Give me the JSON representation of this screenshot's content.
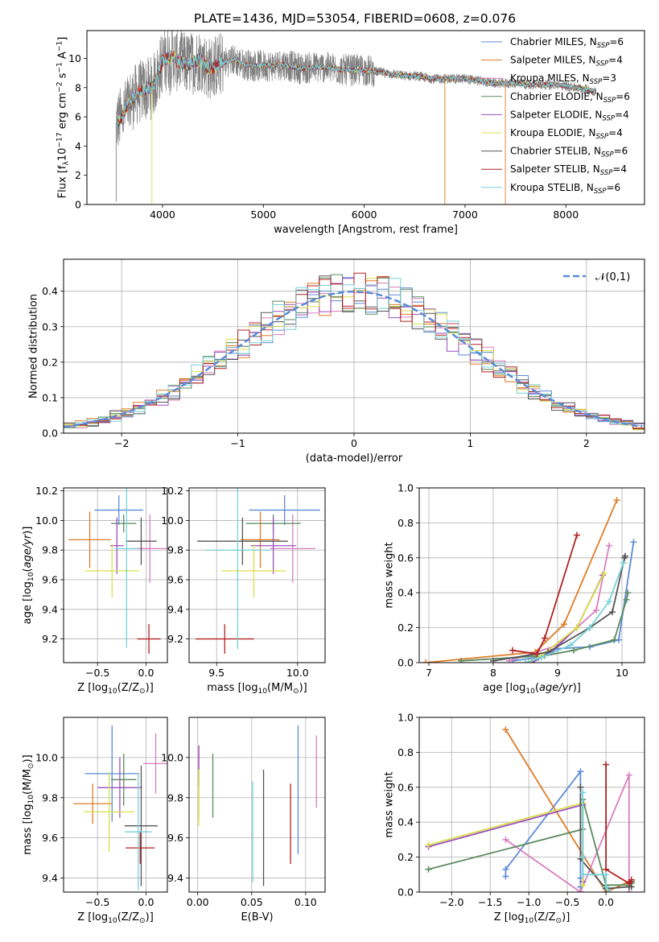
{
  "figure_title": "PLATE=1436, MJD=53054, FIBERID=0608, z=0.076",
  "model_colors": [
    "#5b8bd8",
    "#e07c27",
    "#d97fbf",
    "#5a8a5e",
    "#9b4fbd",
    "#d9e04a",
    "#555555",
    "#b22222",
    "#78d1d8"
  ],
  "chart_data": [
    {
      "id": "spectrum",
      "type": "line",
      "xlabel": "wavelength [Angstrom, rest frame]",
      "ylabel": "Flux [f$_\\lambda$10$^{-17}$ erg cm$^{-2}$ s$^{-1}$ A$^{-1}$]",
      "xlim": [
        3250,
        8780
      ],
      "ylim": [
        0,
        11.9
      ],
      "xticks": [
        4000,
        5000,
        6000,
        7000,
        8000
      ],
      "yticks": [
        0,
        2,
        4,
        6,
        8,
        10
      ],
      "grid": false,
      "legend_position": "top-right",
      "legend": [
        {
          "lead": "Chabrier MILES, N",
          "sub": "SSP",
          "tail": "=6"
        },
        {
          "lead": "Salpeter MILES, N",
          "sub": "SSP",
          "tail": "=4"
        },
        {
          "lead": "Kroupa MILES, N",
          "sub": "SSP",
          "tail": "=3"
        },
        {
          "lead": "Chabrier ELODIE, N",
          "sub": "SSP",
          "tail": "=6"
        },
        {
          "lead": "Salpeter ELODIE, N",
          "sub": "SSP",
          "tail": "=4"
        },
        {
          "lead": "Kroupa ELODIE, N",
          "sub": "SSP",
          "tail": "=4"
        },
        {
          "lead": "Chabrier STELIB, N",
          "sub": "SSP",
          "tail": "=6"
        },
        {
          "lead": "Salpeter STELIB, N",
          "sub": "SSP",
          "tail": "=4"
        },
        {
          "lead": "Kroupa STELIB, N",
          "sub": "SSP",
          "tail": "=6"
        }
      ],
      "data_color": "#808080",
      "x": [
        3540,
        3600,
        3650,
        3700,
        3750,
        3800,
        3850,
        3900,
        3950,
        4000,
        4050,
        4100,
        4150,
        4200,
        4250,
        4300,
        4350,
        4400,
        4450,
        4500,
        4600,
        4700,
        4800,
        4900,
        5000,
        5100,
        5200,
        5300,
        5400,
        5500,
        5600,
        5700,
        5800,
        5900,
        6000,
        6100,
        6200,
        6300,
        6400,
        6500,
        6600,
        6700,
        6800,
        6900,
        7000,
        7100,
        7200,
        7300,
        7400,
        7500,
        7600,
        7700,
        7800,
        7900,
        8000,
        8100,
        8200,
        8300
      ],
      "model_flux": [
        5.6,
        6.0,
        6.8,
        7.2,
        7.6,
        7.8,
        7.9,
        8.0,
        8.8,
        9.8,
        10.0,
        10.2,
        9.8,
        9.7,
        9.6,
        9.7,
        9.9,
        9.8,
        9.3,
        9.4,
        9.7,
        9.9,
        9.6,
        9.5,
        9.5,
        9.5,
        9.6,
        9.4,
        9.3,
        9.4,
        9.4,
        9.3,
        9.2,
        9.2,
        9.2,
        9.1,
        9.0,
        8.9,
        8.8,
        8.8,
        8.7,
        8.6,
        8.6,
        8.6,
        8.6,
        8.5,
        8.4,
        8.3,
        8.3,
        8.3,
        8.2,
        8.2,
        8.2,
        8.2,
        8.1,
        8.0,
        7.9,
        7.7
      ]
    },
    {
      "id": "residuals",
      "type": "step",
      "xlabel": "(data-model)/error",
      "ylabel": "Normed distribution",
      "xlim": [
        -2.5,
        2.5
      ],
      "ylim": [
        0,
        0.49
      ],
      "xticks": [
        -2,
        -1,
        0,
        1,
        2
      ],
      "yticks": [
        0.0,
        0.1,
        0.2,
        0.3,
        0.4
      ],
      "grid": true,
      "legend_position": "top-right",
      "gauss_label": "$\\mathcal{N}(0,1)$",
      "bin_width": 0.1
    },
    {
      "id": "age_vs_Z",
      "type": "errorbar",
      "xlabel": "Z [log$_{10}$($Z/Z_\\odot$)]",
      "ylabel": "age  [log$_{10}$($age/yr$)]",
      "xlim": [
        -0.85,
        0.22
      ],
      "ylim": [
        9.04,
        10.22
      ],
      "xticks": [
        -0.5,
        0.0
      ],
      "yticks": [
        9.2,
        9.4,
        9.6,
        9.8,
        10.0,
        10.2
      ],
      "points": [
        {
          "x": -0.28,
          "y": 10.07,
          "xerr": 0.25,
          "yerr": 0.1
        },
        {
          "x": -0.58,
          "y": 9.87,
          "xerr": 0.22,
          "yerr": 0.19
        },
        {
          "x": 0.04,
          "y": 9.81,
          "xerr": 0.18,
          "yerr": 0.23
        },
        {
          "x": -0.23,
          "y": 9.98,
          "xerr": 0.13,
          "yerr": 0.06
        },
        {
          "x": -0.3,
          "y": 9.83,
          "xerr": 0.07,
          "yerr": 0.19
        },
        {
          "x": -0.35,
          "y": 9.66,
          "xerr": 0.28,
          "yerr": 0.18
        },
        {
          "x": -0.05,
          "y": 9.86,
          "xerr": 0.16,
          "yerr": 0.16
        },
        {
          "x": 0.03,
          "y": 9.2,
          "xerr": 0.12,
          "yerr": 0.1
        },
        {
          "x": -0.2,
          "y": 9.81,
          "xerr": 0.12,
          "yerr": 0.67
        }
      ]
    },
    {
      "id": "age_vs_mass",
      "type": "errorbar",
      "xlabel": "mass [log$_{10}$($M/M_\\odot$)]",
      "ylabel": "",
      "xlim": [
        9.33,
        10.17
      ],
      "ylim": [
        9.04,
        10.22
      ],
      "xticks": [
        9.5,
        10.0
      ],
      "yticks": [
        9.2,
        9.4,
        9.6,
        9.8,
        10.0,
        10.2
      ],
      "points": [
        {
          "x": 9.92,
          "y": 10.07,
          "xerr": 0.22,
          "yerr": 0.1
        },
        {
          "x": 9.77,
          "y": 9.87,
          "xerr": 0.12,
          "yerr": 0.19
        },
        {
          "x": 9.97,
          "y": 9.81,
          "xerr": 0.14,
          "yerr": 0.23
        },
        {
          "x": 9.85,
          "y": 9.98,
          "xerr": 0.17,
          "yerr": 0.06
        },
        {
          "x": 9.85,
          "y": 9.83,
          "xerr": 0.14,
          "yerr": 0.19
        },
        {
          "x": 9.73,
          "y": 9.66,
          "xerr": 0.2,
          "yerr": 0.18
        },
        {
          "x": 9.66,
          "y": 9.86,
          "xerr": 0.28,
          "yerr": 0.16
        },
        {
          "x": 9.55,
          "y": 9.2,
          "xerr": 0.18,
          "yerr": 0.1
        },
        {
          "x": 9.63,
          "y": 9.8,
          "xerr": 0.2,
          "yerr": 0.67
        }
      ]
    },
    {
      "id": "mass_weight_vs_age",
      "type": "line",
      "xlabel": "age  [log$_{10}$($age/yr$)]",
      "ylabel": "mass weight",
      "xlim": [
        6.85,
        10.35
      ],
      "ylim": [
        0.0,
        1.0
      ],
      "xticks": [
        7,
        8,
        9,
        10
      ],
      "yticks": [
        0.0,
        0.2,
        0.4,
        0.6,
        0.8,
        1.0
      ],
      "series": [
        {
          "x": [
            8.3,
            8.7,
            9.0,
            9.5,
            9.95,
            10.18
          ],
          "y": [
            0.01,
            0.03,
            0.08,
            0.09,
            0.13,
            0.69
          ]
        },
        {
          "x": [
            6.95,
            8.65,
            9.1,
            9.92
          ],
          "y": [
            0.0,
            0.06,
            0.22,
            0.93
          ]
        },
        {
          "x": [
            8.25,
            9.0,
            9.6,
            9.8
          ],
          "y": [
            0.01,
            0.1,
            0.3,
            0.67
          ]
        },
        {
          "x": [
            7.5,
            8.8,
            9.25,
            9.88,
            10.07,
            10.09
          ],
          "y": [
            0.01,
            0.04,
            0.07,
            0.13,
            0.36,
            0.4
          ]
        },
        {
          "x": [
            8.6,
            8.9,
            9.3,
            9.7
          ],
          "y": [
            0.0,
            0.06,
            0.2,
            0.5
          ]
        },
        {
          "x": [
            8.55,
            8.75,
            9.3,
            9.72
          ],
          "y": [
            0.0,
            0.04,
            0.2,
            0.51
          ]
        },
        {
          "x": [
            8.0,
            8.85,
            9.5,
            9.85,
            10.04,
            10.05
          ],
          "y": [
            0.01,
            0.06,
            0.2,
            0.29,
            0.6,
            0.61
          ]
        },
        {
          "x": [
            8.3,
            8.68,
            8.8,
            9.3
          ],
          "y": [
            0.07,
            0.05,
            0.14,
            0.73
          ]
        },
        {
          "x": [
            8.5,
            8.75,
            9.2,
            9.5,
            9.8,
            10.02
          ],
          "y": [
            0.0,
            0.03,
            0.1,
            0.2,
            0.35,
            0.57
          ]
        }
      ]
    },
    {
      "id": "mass_vs_Z",
      "type": "errorbar",
      "xlabel": "Z [log$_{10}$($Z/Z_\\odot$)]",
      "ylabel": "mass [log$_{10}$($M/M_\\odot$)]",
      "xlim": [
        -0.85,
        0.22
      ],
      "ylim": [
        9.33,
        10.2
      ],
      "xticks": [
        -0.5,
        0.0
      ],
      "yticks": [
        9.4,
        9.6,
        9.8,
        10.0
      ],
      "points": [
        {
          "x": -0.35,
          "y": 9.92,
          "xerr": 0.28,
          "yerr": 0.24
        },
        {
          "x": -0.55,
          "y": 9.77,
          "xerr": 0.2,
          "yerr": 0.1
        },
        {
          "x": 0.1,
          "y": 9.97,
          "xerr": 0.13,
          "yerr": 0.15
        },
        {
          "x": -0.23,
          "y": 9.89,
          "xerr": 0.13,
          "yerr": 0.13
        },
        {
          "x": -0.27,
          "y": 9.85,
          "xerr": 0.23,
          "yerr": 0.15
        },
        {
          "x": -0.38,
          "y": 9.73,
          "xerr": 0.26,
          "yerr": 0.2
        },
        {
          "x": -0.05,
          "y": 9.66,
          "xerr": 0.17,
          "yerr": 0.3
        },
        {
          "x": -0.06,
          "y": 9.55,
          "xerr": 0.15,
          "yerr": 0.08
        },
        {
          "x": -0.08,
          "y": 9.63,
          "xerr": 0.14,
          "yerr": 0.29
        }
      ]
    },
    {
      "id": "mass_vs_EBV",
      "type": "errorbar",
      "xlabel": "E(B-V)",
      "ylabel": "",
      "xlim": [
        -0.008,
        0.118
      ],
      "ylim": [
        9.33,
        10.2
      ],
      "xticks": [
        0.0,
        0.05,
        0.1
      ],
      "yticks": [
        9.4,
        9.6,
        9.8,
        10.0
      ],
      "points": [
        {
          "x": 0.093,
          "y": 9.84,
          "xerr": 0,
          "yerr": 0.32
        },
        {
          "x": 0.001,
          "y": 9.88,
          "xerr": 0,
          "yerr": 0.18
        },
        {
          "x": 0.11,
          "y": 9.93,
          "xerr": 0,
          "yerr": 0.18
        },
        {
          "x": 0.014,
          "y": 9.86,
          "xerr": 0,
          "yerr": 0.16
        },
        {
          "x": 0.001,
          "y": 9.96,
          "xerr": 0,
          "yerr": 0.1
        },
        {
          "x": 0.001,
          "y": 9.8,
          "xerr": 0,
          "yerr": 0.14
        },
        {
          "x": 0.061,
          "y": 9.65,
          "xerr": 0,
          "yerr": 0.29
        },
        {
          "x": 0.086,
          "y": 9.67,
          "xerr": 0,
          "yerr": 0.2
        },
        {
          "x": 0.051,
          "y": 9.63,
          "xerr": 0,
          "yerr": 0.25
        }
      ]
    },
    {
      "id": "mass_weight_vs_Z",
      "type": "line",
      "xlabel": "Z [log$_{10}$($Z/Z_\\odot$)]",
      "ylabel": "mass weight",
      "xlim": [
        -2.42,
        0.5
      ],
      "ylim": [
        0.0,
        1.0
      ],
      "xticks": [
        -2.0,
        -1.5,
        -1.0,
        -0.5,
        0.0
      ],
      "yticks": [
        0.0,
        0.2,
        0.4,
        0.6,
        0.8,
        1.0
      ],
      "series": [
        {
          "x": [
            -1.3,
            -1.3,
            -0.33,
            -0.33,
            -0.33,
            -0.33
          ],
          "y": [
            0.09,
            0.13,
            0.69,
            0.0,
            0.03,
            0.08
          ]
        },
        {
          "x": [
            -1.3,
            0.0,
            0.3,
            0.33
          ],
          "y": [
            0.93,
            0.0,
            0.06,
            0.06
          ]
        },
        {
          "x": [
            -1.3,
            -0.33,
            0.3,
            0.3
          ],
          "y": [
            0.3,
            0.0,
            0.67,
            0.0
          ]
        },
        {
          "x": [
            -2.3,
            -0.3,
            -0.3,
            0.0,
            0.3,
            0.33
          ],
          "y": [
            0.13,
            0.36,
            0.53,
            0.04,
            0.04,
            0.05
          ]
        },
        {
          "x": [
            -2.3,
            -0.3,
            -0.3,
            -0.3
          ],
          "y": [
            0.26,
            0.5,
            0.06,
            0.2
          ]
        },
        {
          "x": [
            -2.3,
            -0.3,
            -0.3,
            -0.3
          ],
          "y": [
            0.27,
            0.51,
            0.04,
            0.2
          ]
        },
        {
          "x": [
            -0.33,
            -0.33,
            0.0,
            0.3,
            0.33,
            0.33
          ],
          "y": [
            0.6,
            0.19,
            0.02,
            0.03,
            0.03,
            0.06
          ]
        },
        {
          "x": [
            0.0,
            0.0,
            0.3,
            0.33
          ],
          "y": [
            0.73,
            0.13,
            0.05,
            0.07
          ]
        },
        {
          "x": [
            -0.3,
            -0.3,
            -0.3,
            0.0,
            0.0,
            0.05
          ],
          "y": [
            0.57,
            0.2,
            0.1,
            0.1,
            0.03,
            0.0
          ]
        }
      ]
    }
  ]
}
